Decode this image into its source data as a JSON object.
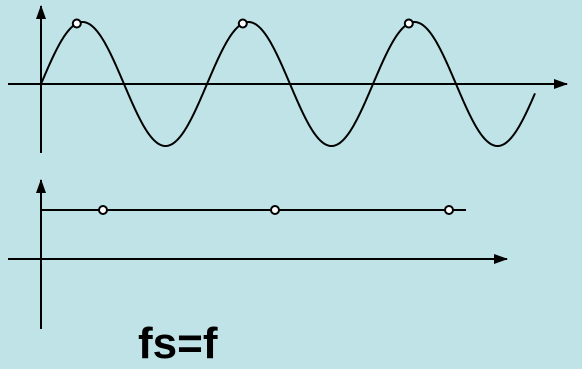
{
  "caption": "fs=f",
  "colors": {
    "background": "#bfe3e6",
    "stroke": "#000000",
    "sample_fill": "#ffffff"
  },
  "top_panel": {
    "signal": "sine",
    "cycles_shown": 3,
    "sample_phase": 0.125,
    "samples": 3
  },
  "bottom_panel": {
    "signal": "constant",
    "samples": 3
  }
}
